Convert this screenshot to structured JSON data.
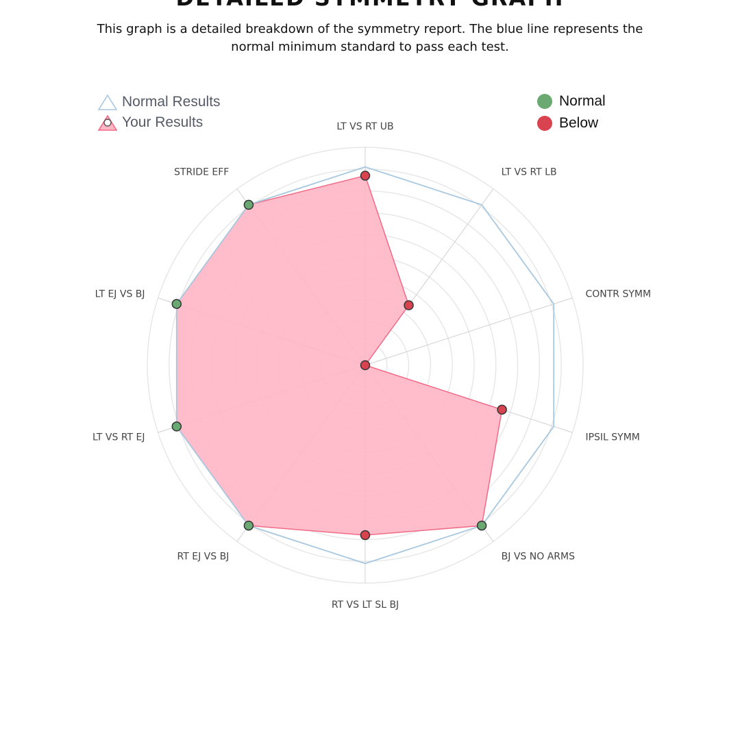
{
  "header": {
    "title": "DETAILED SYMMETRY GRAPH",
    "description": "This graph is a detailed breakdown of the symmetry report. The blue line represents the normal minimum standard to pass each test."
  },
  "legend": {
    "series": [
      {
        "label": "Normal Results",
        "icon": "triangle-outline-icon",
        "color": "#a8c8e0"
      },
      {
        "label": "Your Results",
        "icon": "triangle-filled-dot-icon",
        "color": "#f06a86"
      }
    ],
    "status": [
      {
        "label": "Normal",
        "color": "#6aaa72"
      },
      {
        "label": "Below",
        "color": "#d9434f"
      }
    ]
  },
  "chart_data": {
    "type": "radar",
    "categories": [
      "LT VS RT UB",
      "LT VS RT LB",
      "CONTR SYMM",
      "IPSIL SYMM",
      "BJ VS NO ARMS",
      "RT VS LT SL BJ",
      "RT EJ VS BJ",
      "LT VS RT EJ",
      "LT EJ VS BJ",
      "STRIDE EFF"
    ],
    "rmax": 100,
    "rings": 10,
    "grid": true,
    "series": [
      {
        "name": "Normal Results",
        "values": [
          91,
          91,
          91,
          91,
          91,
          91,
          91,
          91,
          91,
          91
        ],
        "stroke": "#a8c8e0",
        "fill": "none"
      },
      {
        "name": "Your Results",
        "values": [
          87,
          34,
          0,
          66,
          91,
          78,
          91,
          91,
          91,
          91
        ],
        "stroke": "#f06a86",
        "fill": "#ffb6c6",
        "status": [
          "Below",
          "Below",
          "Below",
          "Below",
          "Normal",
          "Below",
          "Normal",
          "Normal",
          "Normal",
          "Normal"
        ]
      }
    ],
    "colors": {
      "normal": "#6aaa72",
      "below": "#d9434f",
      "grid": "#e6e6e6",
      "axis": "#d0d0d0"
    }
  }
}
